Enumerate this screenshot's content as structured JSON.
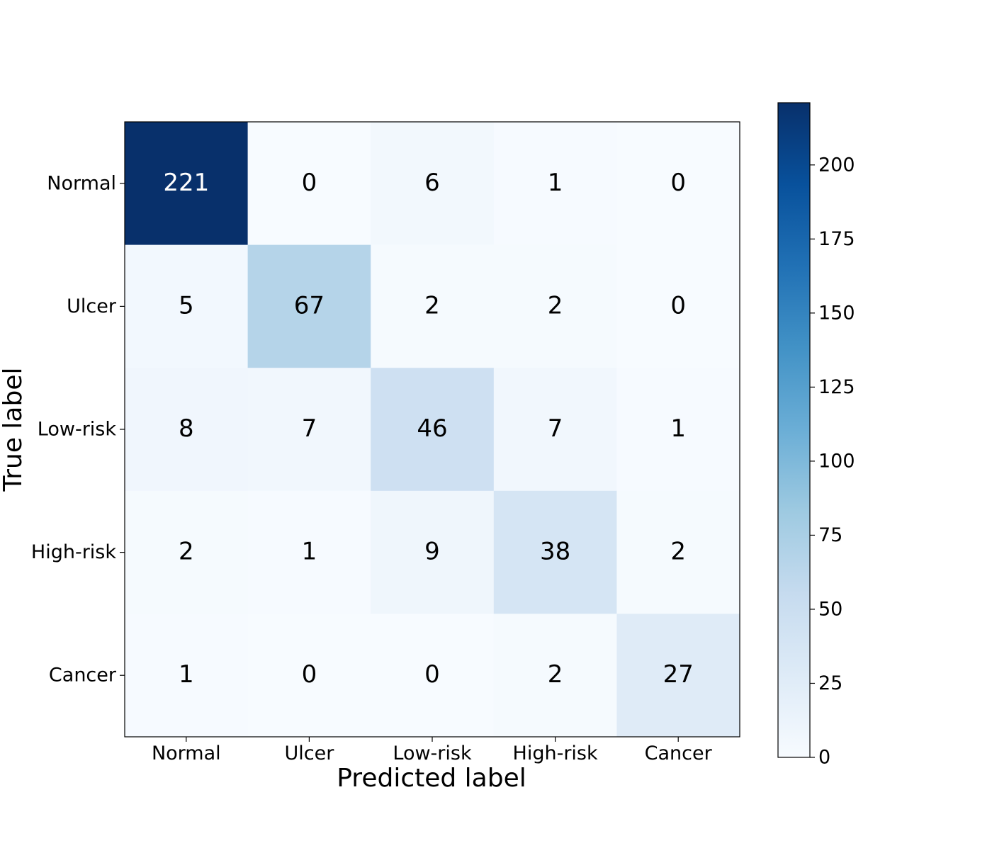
{
  "chart_data": {
    "type": "heatmap",
    "title": "",
    "xlabel": "Predicted label",
    "ylabel": "True label",
    "x_categories": [
      "Normal",
      "Ulcer",
      "Low-risk",
      "High-risk",
      "Cancer"
    ],
    "y_categories": [
      "Normal",
      "Ulcer",
      "Low-risk",
      "High-risk",
      "Cancer"
    ],
    "values": [
      [
        221,
        0,
        6,
        1,
        0
      ],
      [
        5,
        67,
        2,
        2,
        0
      ],
      [
        8,
        7,
        46,
        7,
        1
      ],
      [
        2,
        1,
        9,
        38,
        2
      ],
      [
        1,
        0,
        0,
        2,
        27
      ]
    ],
    "colormap": "Blues",
    "colorbar": {
      "range": [
        0,
        221
      ],
      "ticks": [
        0,
        25,
        50,
        75,
        100,
        125,
        150,
        175,
        200
      ]
    },
    "grid": false,
    "legend": "none"
  }
}
